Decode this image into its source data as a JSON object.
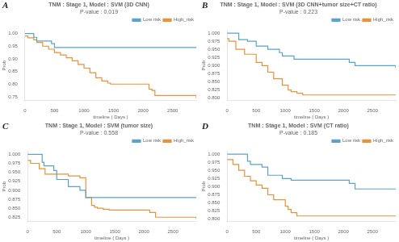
{
  "chart_data": [
    {
      "type": "step",
      "title": "TNM : Stage 1, Model : SVM (3D CNN)",
      "subtitle": "P-value : 0.019",
      "annotations": [
        "A"
      ],
      "xlabel": "timeline ( Days )",
      "ylabel": "Prob",
      "series": [
        {
          "name": "Low risk",
          "color": "#5ba3c9",
          "x": [
            0,
            150,
            200,
            450,
            500,
            2900
          ],
          "values": [
            1.0,
            0.985,
            0.97,
            0.96,
            0.945,
            0.945
          ]
        },
        {
          "name": "High_risk",
          "color": "#e8923a",
          "x": [
            0,
            50,
            150,
            200,
            300,
            400,
            500,
            600,
            700,
            800,
            900,
            1000,
            1100,
            1200,
            1300,
            1400,
            1450,
            1500,
            1600,
            1700,
            1800,
            1900,
            2000,
            2100,
            2150,
            2200,
            2900
          ],
          "values": [
            0.99,
            0.983,
            0.975,
            0.965,
            0.95,
            0.938,
            0.925,
            0.915,
            0.904,
            0.892,
            0.878,
            0.863,
            0.845,
            0.825,
            0.812,
            0.804,
            0.8,
            0.8,
            0.8,
            0.8,
            0.8,
            0.8,
            0.8,
            0.78,
            0.775,
            0.755,
            0.745
          ]
        }
      ],
      "xlim": [
        0,
        2900
      ],
      "xticks": [
        0,
        500,
        1000,
        1500,
        2000,
        2500
      ],
      "ylim": [
        0.735,
        1.012
      ],
      "yticks": [
        0.75,
        {
          "value": 0.8,
          "label": "0.80"
        },
        0.85,
        {
          "value": 0.9,
          "label": "0.90"
        },
        0.95,
        {
          "value": 1,
          "label": "1.00"
        }
      ],
      "grid": false,
      "legend": "upper right"
    },
    {
      "type": "step",
      "title": "TNM : Stage 1, Model : SVM (3D CNN+tumor size+CT ratio)",
      "subtitle": "P-value : 0.223",
      "annotations": [
        "B"
      ],
      "xlabel": "timeline ( Days )",
      "ylabel": "Prob",
      "series": [
        {
          "name": "Low risk",
          "color": "#5ba3c9",
          "x": [
            0,
            200,
            350,
            500,
            700,
            900,
            950,
            1150,
            2100,
            2200,
            2900
          ],
          "values": [
            1.0,
            0.98,
            0.975,
            0.96,
            0.95,
            0.94,
            0.93,
            0.92,
            0.91,
            0.9,
            0.893
          ]
        },
        {
          "name": "High_risk",
          "color": "#e8923a",
          "x": [
            0,
            30,
            150,
            300,
            500,
            600,
            700,
            800,
            950,
            1050,
            1100,
            1200,
            1300,
            2900
          ],
          "values": [
            0.983,
            0.975,
            0.95,
            0.935,
            0.91,
            0.9,
            0.88,
            0.86,
            0.84,
            0.825,
            0.82,
            0.815,
            0.81,
            0.81
          ]
        }
      ],
      "xlim": [
        0,
        2900
      ],
      "xticks": [
        0,
        500,
        1000,
        1500,
        2000,
        2500
      ],
      "ylim": [
        0.793,
        1.008
      ],
      "yticks": [
        {
          "value": 0.8,
          "label": "0.800"
        },
        0.825,
        {
          "value": 0.85,
          "label": "0.850"
        },
        0.875,
        {
          "value": 0.9,
          "label": "0.900"
        },
        0.925,
        {
          "value": 0.95,
          "label": "0.950"
        },
        0.975,
        {
          "value": 1,
          "label": "1.000"
        }
      ],
      "grid": false,
      "legend": "upper right"
    },
    {
      "type": "step",
      "title": "TNM : Stage 1, Model : SVM (tumor size)",
      "subtitle": "P-value : 0.558",
      "annotations": [
        "C"
      ],
      "xlabel": "timeline ( Days )",
      "ylabel": "Prob",
      "series": [
        {
          "name": "Low risk",
          "color": "#5ba3c9",
          "x": [
            0,
            250,
            280,
            450,
            500,
            700,
            900,
            1000,
            2900
          ],
          "values": [
            1.0,
            0.978,
            0.968,
            0.955,
            0.93,
            0.91,
            0.9,
            0.88,
            0.88
          ]
        },
        {
          "name": "High_risk",
          "color": "#e8923a",
          "x": [
            0,
            50,
            200,
            300,
            700,
            900,
            1000,
            1100,
            1150,
            1200,
            1300,
            1400,
            2100,
            2200,
            2900
          ],
          "values": [
            0.983,
            0.975,
            0.96,
            0.945,
            0.94,
            0.935,
            0.88,
            0.858,
            0.853,
            0.85,
            0.847,
            0.845,
            0.838,
            0.825,
            0.82
          ]
        }
      ],
      "xlim": [
        0,
        2900
      ],
      "xticks": [
        0,
        500,
        1000,
        1500,
        2000,
        2500
      ],
      "ylim": [
        0.813,
        1.008
      ],
      "yticks": [
        0.825,
        {
          "value": 0.85,
          "label": "0.850"
        },
        0.875,
        {
          "value": 0.9,
          "label": "0.900"
        },
        0.925,
        {
          "value": 0.95,
          "label": "0.950"
        },
        0.975,
        {
          "value": 1,
          "label": "1.000"
        }
      ],
      "grid": false,
      "legend": "upper right"
    },
    {
      "type": "step",
      "title": "TNM : Stage 1, Model : SVM (CT ratio)",
      "subtitle": "P-value : 0.185",
      "annotations": [
        "D"
      ],
      "xlabel": "timeline ( Days )",
      "ylabel": "Prob",
      "series": [
        {
          "name": "Low risk",
          "color": "#5ba3c9",
          "x": [
            0,
            350,
            400,
            600,
            700,
            950,
            1100,
            2100,
            2200,
            2900
          ],
          "values": [
            1.0,
            0.978,
            0.968,
            0.96,
            0.935,
            0.925,
            0.92,
            0.91,
            0.893,
            0.893
          ]
        },
        {
          "name": "High_risk",
          "color": "#e8923a",
          "x": [
            0,
            100,
            200,
            300,
            400,
            500,
            600,
            700,
            800,
            1000,
            1050,
            1100,
            1200,
            2900
          ],
          "values": [
            0.983,
            0.968,
            0.95,
            0.932,
            0.918,
            0.905,
            0.895,
            0.875,
            0.86,
            0.84,
            0.83,
            0.82,
            0.81,
            0.808
          ]
        }
      ],
      "xlim": [
        0,
        2900
      ],
      "xticks": [
        0,
        500,
        1000,
        1500,
        2000,
        2500
      ],
      "ylim": [
        0.793,
        1.008
      ],
      "yticks": [
        {
          "value": 0.8,
          "label": "0.800"
        },
        0.825,
        {
          "value": 0.85,
          "label": "0.850"
        },
        0.875,
        {
          "value": 0.9,
          "label": "0.900"
        },
        0.925,
        {
          "value": 0.95,
          "label": "0.950"
        },
        0.975,
        {
          "value": 1,
          "label": "1.000"
        }
      ],
      "grid": false,
      "legend": "upper right"
    }
  ]
}
